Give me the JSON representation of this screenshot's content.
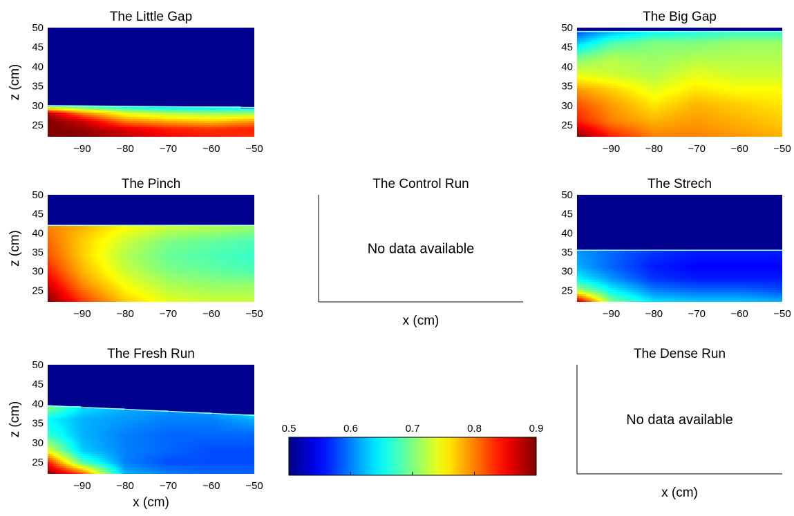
{
  "figure": {
    "xlabel": "x (cm)",
    "ylabel": "z (cm)"
  },
  "chart_data": [
    {
      "type": "heatmap",
      "title": "The Little Gap",
      "available": true,
      "xlim": [
        -98,
        -50
      ],
      "ylim": [
        22,
        50
      ],
      "xticks": [
        -90,
        -80,
        -70,
        -60,
        -50
      ],
      "yticks": [
        25,
        30,
        35,
        40,
        45,
        50
      ],
      "show_xlabel": false,
      "show_ylabel": true,
      "interface_z": 30,
      "interface_z_right": 29.5,
      "profile_x": [
        -98,
        -90,
        -80,
        -70,
        -60,
        -50
      ],
      "profile_z": [
        22,
        24,
        26,
        28,
        30
      ],
      "profile_values": [
        [
          0.9,
          0.9,
          0.88,
          0.85,
          0.84,
          0.83
        ],
        [
          0.9,
          0.89,
          0.86,
          0.84,
          0.83,
          0.84
        ],
        [
          0.9,
          0.87,
          0.8,
          0.78,
          0.77,
          0.79
        ],
        [
          0.88,
          0.8,
          0.74,
          0.72,
          0.71,
          0.71
        ],
        [
          0.68,
          0.66,
          0.64,
          0.62,
          0.62,
          0.62
        ]
      ]
    },
    {
      "type": "heatmap",
      "title": "The Big Gap",
      "available": true,
      "xlim": [
        -98,
        -50
      ],
      "ylim": [
        22,
        50
      ],
      "xticks": [
        -90,
        -80,
        -70,
        -60,
        -50
      ],
      "yticks": [
        25,
        30,
        35,
        40,
        45,
        50
      ],
      "show_xlabel": false,
      "show_ylabel": false,
      "interface_z": 49,
      "interface_z_right": 49,
      "profile_x": [
        -98,
        -90,
        -80,
        -70,
        -60,
        -50
      ],
      "profile_z": [
        22,
        26,
        30,
        34,
        38,
        42,
        46,
        49
      ],
      "profile_values": [
        [
          0.9,
          0.84,
          0.8,
          0.8,
          0.79,
          0.78
        ],
        [
          0.84,
          0.8,
          0.78,
          0.79,
          0.78,
          0.77
        ],
        [
          0.82,
          0.79,
          0.76,
          0.78,
          0.77,
          0.76
        ],
        [
          0.79,
          0.77,
          0.74,
          0.76,
          0.75,
          0.75
        ],
        [
          0.74,
          0.73,
          0.72,
          0.74,
          0.73,
          0.73
        ],
        [
          0.7,
          0.72,
          0.71,
          0.72,
          0.72,
          0.72
        ],
        [
          0.63,
          0.68,
          0.7,
          0.7,
          0.71,
          0.71
        ],
        [
          0.58,
          0.62,
          0.65,
          0.66,
          0.67,
          0.67
        ]
      ]
    },
    {
      "type": "heatmap",
      "title": "The Pinch",
      "available": true,
      "xlim": [
        -98,
        -50
      ],
      "ylim": [
        22,
        50
      ],
      "xticks": [
        -90,
        -80,
        -70,
        -60,
        -50
      ],
      "yticks": [
        25,
        30,
        35,
        40,
        45,
        50
      ],
      "show_xlabel": false,
      "show_ylabel": true,
      "interface_z": 42,
      "interface_z_right": 42,
      "profile_x": [
        -98,
        -90,
        -80,
        -70,
        -60,
        -50
      ],
      "profile_z": [
        22,
        26,
        30,
        34,
        38,
        41.5
      ],
      "profile_values": [
        [
          0.9,
          0.83,
          0.77,
          0.74,
          0.73,
          0.73
        ],
        [
          0.87,
          0.8,
          0.75,
          0.72,
          0.71,
          0.71
        ],
        [
          0.84,
          0.78,
          0.73,
          0.7,
          0.69,
          0.68
        ],
        [
          0.82,
          0.77,
          0.72,
          0.69,
          0.68,
          0.67
        ],
        [
          0.81,
          0.77,
          0.73,
          0.7,
          0.69,
          0.68
        ],
        [
          0.8,
          0.78,
          0.75,
          0.73,
          0.72,
          0.71
        ]
      ]
    },
    {
      "type": "heatmap",
      "title": "The Control Run",
      "available": false,
      "message": "No data available",
      "show_xlabel": true,
      "show_ylabel": false
    },
    {
      "type": "heatmap",
      "title": "The Strech",
      "available": true,
      "xlim": [
        -98,
        -50
      ],
      "ylim": [
        22,
        50
      ],
      "xticks": [
        -90,
        -80,
        -70,
        -60,
        -50
      ],
      "yticks": [
        25,
        30,
        35,
        40,
        45,
        50
      ],
      "show_xlabel": false,
      "show_ylabel": false,
      "interface_z": 35.5,
      "interface_z_right": 35.5,
      "profile_x": [
        -98,
        -90,
        -80,
        -70,
        -60,
        -50
      ],
      "profile_z": [
        22,
        25,
        28,
        31,
        35
      ],
      "profile_values": [
        [
          0.88,
          0.7,
          0.64,
          0.63,
          0.63,
          0.62
        ],
        [
          0.72,
          0.65,
          0.6,
          0.59,
          0.59,
          0.58
        ],
        [
          0.65,
          0.61,
          0.57,
          0.56,
          0.56,
          0.56
        ],
        [
          0.62,
          0.59,
          0.56,
          0.55,
          0.55,
          0.55
        ],
        [
          0.61,
          0.59,
          0.57,
          0.56,
          0.56,
          0.56
        ]
      ]
    },
    {
      "type": "heatmap",
      "title": "The Fresh Run",
      "available": true,
      "xlim": [
        -98,
        -50
      ],
      "ylim": [
        22,
        50
      ],
      "xticks": [
        -90,
        -80,
        -70,
        -60,
        -50
      ],
      "yticks": [
        25,
        30,
        35,
        40,
        45,
        50
      ],
      "show_xlabel": true,
      "show_ylabel": true,
      "interface_z": 39.5,
      "interface_z_right": 37,
      "profile_x": [
        -98,
        -90,
        -80,
        -70,
        -60,
        -50
      ],
      "profile_z": [
        22,
        25,
        28,
        32,
        36,
        39
      ],
      "profile_values": [
        [
          0.9,
          0.82,
          0.62,
          0.6,
          0.59,
          0.59
        ],
        [
          0.84,
          0.68,
          0.6,
          0.58,
          0.58,
          0.58
        ],
        [
          0.74,
          0.63,
          0.6,
          0.59,
          0.58,
          0.58
        ],
        [
          0.67,
          0.62,
          0.6,
          0.59,
          0.59,
          0.59
        ],
        [
          0.65,
          0.62,
          0.61,
          0.6,
          0.6,
          0.62
        ],
        [
          0.7,
          0.64,
          0.62,
          0.61,
          0.62,
          0.66
        ]
      ]
    },
    {
      "type": "heatmap",
      "title": "The Dense Run",
      "available": false,
      "message": "No data available",
      "show_xlabel": true,
      "show_ylabel": false
    }
  ],
  "colorbar": {
    "min": 0.5,
    "max": 0.9,
    "ticks": [
      "0.5",
      "0.6",
      "0.7",
      "0.8",
      "0.9"
    ],
    "colormap": "jet",
    "below_interface_color": "#00008f"
  }
}
